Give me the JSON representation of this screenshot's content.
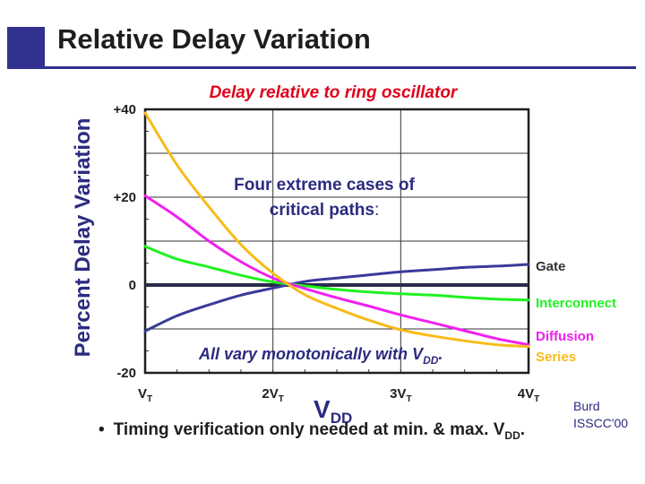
{
  "slide": {
    "title": "Relative Delay Variation",
    "bullet_marker": "•",
    "bullet_text": "Timing verification only needed at min. & max. V",
    "bullet_sub": "DD",
    "bullet_end": ".",
    "credit_line1": "Burd",
    "credit_line2": "ISSCC'00"
  },
  "colors": {
    "accent": "#31318f",
    "title_red": "#e0001a",
    "note_blue": "#2b2b80",
    "gate": "#3a3a9a",
    "interconnect": "#1ff21f",
    "diffusion": "#f020f0",
    "series": "#f7bb1a"
  },
  "chart_data": {
    "type": "line",
    "title": "Delay relative to ring oscillator",
    "ylabel": "Percent Delay Variation",
    "xlabel_main": "V",
    "xlabel_sub": "DD",
    "ylim": [
      -20,
      40
    ],
    "xlim": [
      1,
      4
    ],
    "y_ticks": [
      {
        "value": 40,
        "label": "+40"
      },
      {
        "value": 20,
        "label": "+20"
      },
      {
        "value": 0,
        "label": "0"
      },
      {
        "value": -20,
        "label": "-20"
      }
    ],
    "x_ticks": [
      {
        "value": 1,
        "main": "V",
        "sub": "T"
      },
      {
        "value": 2,
        "main": "2V",
        "sub": "T"
      },
      {
        "value": 3,
        "main": "3V",
        "sub": "T"
      },
      {
        "value": 4,
        "main": "4V",
        "sub": "T"
      }
    ],
    "grid": true,
    "series": [
      {
        "name": "Gate",
        "color": "#3a3a9a",
        "x": [
          1,
          1.25,
          1.5,
          1.75,
          2,
          2.25,
          2.5,
          2.75,
          3,
          3.25,
          3.5,
          3.75,
          4
        ],
        "y": [
          -10.5,
          -7,
          -4.5,
          -2.3,
          -0.7,
          0.8,
          1.6,
          2.3,
          3,
          3.5,
          4,
          4.3,
          4.7
        ]
      },
      {
        "name": "Interconnect",
        "color": "#1ff21f",
        "x": [
          1,
          1.25,
          1.5,
          1.75,
          2,
          2.25,
          2.5,
          2.75,
          3,
          3.25,
          3.5,
          3.75,
          4
        ],
        "y": [
          8.8,
          5.9,
          4.1,
          2.2,
          0.7,
          -0.2,
          -1,
          -1.6,
          -2,
          -2.3,
          -2.8,
          -3.2,
          -3.4
        ]
      },
      {
        "name": "Diffusion",
        "color": "#f020f0",
        "x": [
          1,
          1.25,
          1.5,
          1.75,
          2,
          2.25,
          2.5,
          2.75,
          3,
          3.25,
          3.5,
          3.75,
          4
        ],
        "y": [
          20.3,
          15.5,
          10,
          5.3,
          1.6,
          -0.8,
          -2.9,
          -4.8,
          -6.8,
          -8.6,
          -10.4,
          -12.2,
          -13.6
        ]
      },
      {
        "name": "Series",
        "color": "#f7bb1a",
        "x": [
          1,
          1.25,
          1.5,
          1.75,
          2,
          2.25,
          2.5,
          2.75,
          3,
          3.25,
          3.5,
          3.75,
          4
        ],
        "y": [
          39.2,
          27.3,
          17.8,
          9.2,
          2.7,
          -2.2,
          -5.3,
          -8,
          -10.2,
          -11.6,
          -12.7,
          -13.6,
          -14
        ]
      }
    ],
    "annotations": [
      {
        "text": "Four extreme cases of"
      },
      {
        "text": "critical paths",
        "suffix": ":"
      },
      {
        "text": "All vary monotonically with V",
        "sub": "DD",
        "suffix": "."
      }
    ]
  }
}
